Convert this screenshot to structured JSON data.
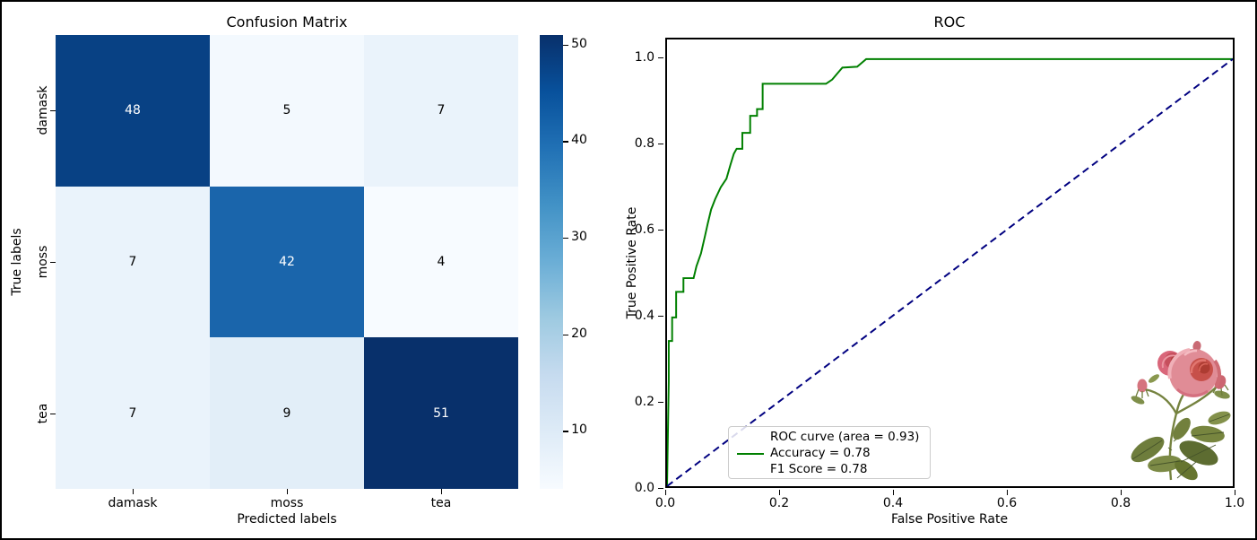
{
  "chart_data": [
    {
      "type": "heatmap",
      "title": "Confusion Matrix",
      "xlabel": "Predicted labels",
      "ylabel": "True labels",
      "categories": [
        "damask",
        "moss",
        "tea"
      ],
      "matrix": [
        [
          48,
          5,
          7
        ],
        [
          7,
          42,
          4
        ],
        [
          7,
          9,
          51
        ]
      ],
      "colormap": "Blues",
      "vmin": 4,
      "vmax": 51,
      "cell_colors": [
        [
          "#084184",
          "#f3f9fe",
          "#eaf3fb"
        ],
        [
          "#eaf3fb",
          "#1a65ab",
          "#f7fbff"
        ],
        [
          "#eaf3fb",
          "#e2eef8",
          "#08306b"
        ]
      ],
      "cell_text_colors": [
        [
          "#ffffff",
          "#000000",
          "#000000"
        ],
        [
          "#000000",
          "#ffffff",
          "#000000"
        ],
        [
          "#000000",
          "#000000",
          "#ffffff"
        ]
      ],
      "colorbar_ticks": [
        50,
        40,
        30,
        20,
        10
      ],
      "colorbar_gradient_top_to_bottom": [
        "#08306b",
        "#08519c",
        "#2171b5",
        "#4292c6",
        "#6baed6",
        "#9ecae1",
        "#c6dbef",
        "#deebf7",
        "#f7fbff"
      ]
    },
    {
      "type": "line",
      "title": "ROC",
      "xlabel": "False Positive Rate",
      "ylabel": "True Positive Rate",
      "xlim": [
        0,
        1
      ],
      "ylim": [
        0,
        1.046
      ],
      "x_tick_labels": [
        "0.0",
        "0.2",
        "0.4",
        "0.6",
        "0.8",
        "1.0"
      ],
      "y_tick_labels": [
        "0.0",
        "0.2",
        "0.4",
        "0.6",
        "0.8",
        "1.0"
      ],
      "x_tick_values": [
        0,
        0.2,
        0.4,
        0.6,
        0.8,
        1.0
      ],
      "y_tick_values": [
        0,
        0.2,
        0.4,
        0.6,
        0.8,
        1.0
      ],
      "grid": false,
      "legend_position": "lower-left",
      "series": [
        {
          "name": "roc-curve",
          "color": "#008000",
          "style": "solid",
          "width": 2,
          "points": [
            [
              0,
              0
            ],
            [
              0.003,
              0.245
            ],
            [
              0.003,
              0.34
            ],
            [
              0.009,
              0.34
            ],
            [
              0.009,
              0.395
            ],
            [
              0.016,
              0.395
            ],
            [
              0.016,
              0.455
            ],
            [
              0.029,
              0.455
            ],
            [
              0.029,
              0.487
            ],
            [
              0.047,
              0.487
            ],
            [
              0.052,
              0.515
            ],
            [
              0.06,
              0.545
            ],
            [
              0.067,
              0.585
            ],
            [
              0.072,
              0.615
            ],
            [
              0.078,
              0.648
            ],
            [
              0.085,
              0.672
            ],
            [
              0.095,
              0.7
            ],
            [
              0.105,
              0.72
            ],
            [
              0.112,
              0.752
            ],
            [
              0.118,
              0.778
            ],
            [
              0.123,
              0.79
            ],
            [
              0.133,
              0.79
            ],
            [
              0.133,
              0.827
            ],
            [
              0.147,
              0.827
            ],
            [
              0.147,
              0.867
            ],
            [
              0.159,
              0.867
            ],
            [
              0.159,
              0.883
            ],
            [
              0.169,
              0.883
            ],
            [
              0.169,
              0.942
            ],
            [
              0.281,
              0.942
            ],
            [
              0.292,
              0.952
            ],
            [
              0.302,
              0.968
            ],
            [
              0.31,
              0.98
            ],
            [
              0.336,
              0.982
            ],
            [
              0.352,
              1.0
            ],
            [
              1.0,
              1.0
            ]
          ]
        },
        {
          "name": "chance-diagonal",
          "color": "#000080",
          "style": "dashed",
          "width": 2,
          "points": [
            [
              0,
              0
            ],
            [
              1,
              1
            ]
          ]
        }
      ],
      "legend": {
        "lines": [
          "ROC curve (area = 0.93)",
          "Accuracy = 0.78",
          "F1 Score = 0.78"
        ],
        "handle_color": "#008000"
      },
      "annotations": [
        {
          "type": "image",
          "name": "rose-illustration",
          "x_range": [
            0.79,
            1.0
          ],
          "y_range": [
            0.015,
            0.355
          ]
        }
      ]
    }
  ],
  "metrics": {
    "auc": 0.93,
    "accuracy": 0.78,
    "f1_score": 0.78
  }
}
